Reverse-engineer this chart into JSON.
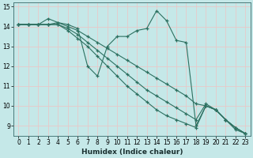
{
  "xlabel": "Humidex (Indice chaleur)",
  "background_color": "#c5e8e8",
  "grid_color": "#e8c8c8",
  "line_color": "#2d7060",
  "xlim": [
    -0.5,
    23.5
  ],
  "ylim": [
    8.5,
    15.2
  ],
  "yticks": [
    9,
    10,
    11,
    12,
    13,
    14,
    15
  ],
  "xticks": [
    0,
    1,
    2,
    3,
    4,
    5,
    6,
    7,
    8,
    9,
    10,
    11,
    12,
    13,
    14,
    15,
    16,
    17,
    18,
    19,
    20,
    21,
    22,
    23
  ],
  "series": [
    {
      "x": [
        0,
        1,
        2,
        3,
        4,
        5,
        6,
        7,
        8,
        9,
        10,
        11,
        12,
        13,
        14,
        15,
        16,
        17,
        18,
        19,
        20,
        21,
        22,
        23
      ],
      "y": [
        14.1,
        14.1,
        14.1,
        14.4,
        14.2,
        14.1,
        13.9,
        12.0,
        11.5,
        13.0,
        13.5,
        13.5,
        13.8,
        13.9,
        14.8,
        14.3,
        13.3,
        13.2,
        9.0,
        10.0,
        9.8,
        9.3,
        8.8,
        8.6
      ]
    },
    {
      "x": [
        0,
        1,
        2,
        3,
        4,
        5,
        6,
        7,
        8,
        9,
        10,
        11,
        12,
        13,
        14,
        15,
        16,
        17,
        18,
        19,
        20,
        21,
        22,
        23
      ],
      "y": [
        14.1,
        14.1,
        14.1,
        14.1,
        14.2,
        14.0,
        13.8,
        13.5,
        13.2,
        12.9,
        12.6,
        12.3,
        12.0,
        11.7,
        11.4,
        11.1,
        10.8,
        10.5,
        10.1,
        10.0,
        9.8,
        9.3,
        8.9,
        8.6
      ]
    },
    {
      "x": [
        0,
        1,
        2,
        3,
        4,
        5,
        6,
        7,
        8,
        9,
        10,
        11,
        12,
        13,
        14,
        15,
        16,
        17,
        18,
        19,
        20,
        21,
        22,
        23
      ],
      "y": [
        14.1,
        14.1,
        14.1,
        14.1,
        14.1,
        13.9,
        13.6,
        13.2,
        12.8,
        12.4,
        12.0,
        11.6,
        11.2,
        10.8,
        10.5,
        10.2,
        9.9,
        9.6,
        9.3,
        10.1,
        9.8,
        9.3,
        8.9,
        8.6
      ]
    },
    {
      "x": [
        0,
        1,
        2,
        3,
        4,
        5,
        6,
        7,
        8,
        9,
        10,
        11,
        12,
        13,
        14,
        15,
        16,
        17,
        18,
        19,
        20,
        21,
        22,
        23
      ],
      "y": [
        14.1,
        14.1,
        14.1,
        14.1,
        14.1,
        13.8,
        13.4,
        13.0,
        12.5,
        12.0,
        11.5,
        11.0,
        10.6,
        10.2,
        9.8,
        9.5,
        9.3,
        9.1,
        8.9,
        10.0,
        9.8,
        9.3,
        8.9,
        8.6
      ]
    }
  ]
}
